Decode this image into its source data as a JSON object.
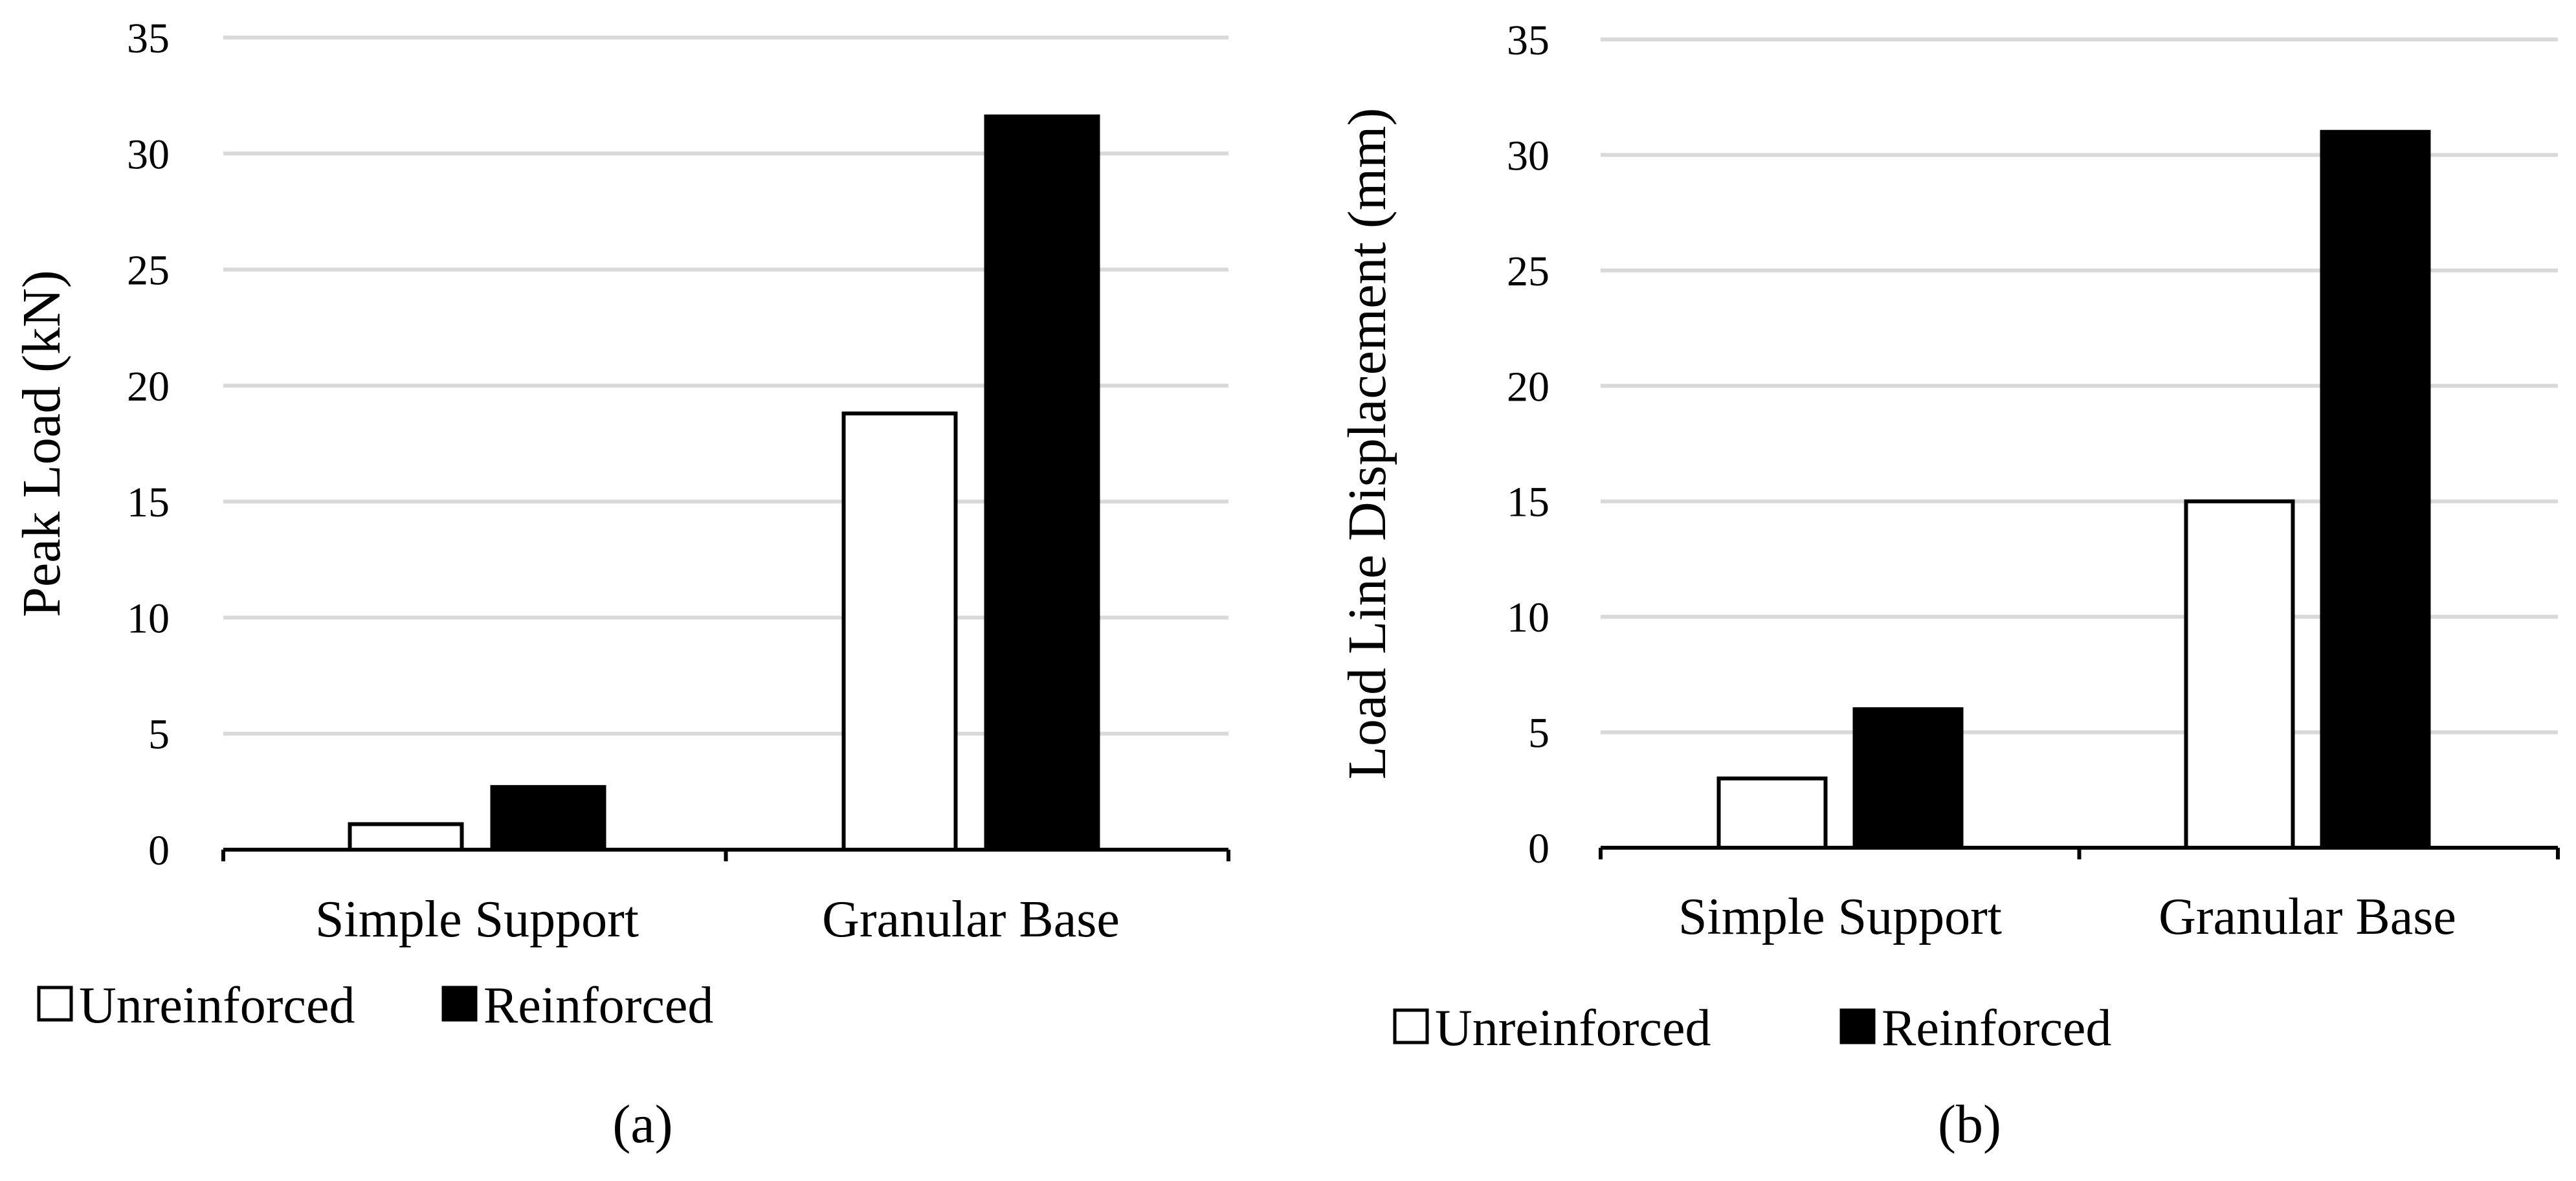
{
  "chart_data": [
    {
      "type": "bar",
      "panel_label": "(a)",
      "categories": [
        "Simple Support",
        "Granular Base"
      ],
      "series": [
        {
          "name": "Unreinforced",
          "values": [
            1.1,
            18.8
          ]
        },
        {
          "name": "Reinforced",
          "values": [
            2.7,
            31.6
          ]
        }
      ],
      "ylabel": "Peak Load (kN)",
      "xlabel": "",
      "ylim": [
        0,
        35
      ],
      "yticks": [
        "0",
        "5",
        "10",
        "15",
        "20",
        "25",
        "30",
        "35"
      ],
      "grid": true,
      "legend_position": "bottom-left"
    },
    {
      "type": "bar",
      "panel_label": "(b)",
      "categories": [
        "Simple Support",
        "Granular Base"
      ],
      "series": [
        {
          "name": "Unreinforced",
          "values": [
            3.0,
            15.0
          ]
        },
        {
          "name": "Reinforced",
          "values": [
            6.0,
            31.0
          ]
        }
      ],
      "ylabel": "Load Line Displacement (mm)",
      "xlabel": "",
      "ylim": [
        0,
        35
      ],
      "yticks": [
        "0",
        "5",
        "10",
        "15",
        "20",
        "25",
        "30",
        "35"
      ],
      "grid": true,
      "legend_position": "bottom-left"
    }
  ],
  "colors": {
    "unreinforced_fill": "#ffffff",
    "reinforced_fill": "#000000",
    "bar_outline": "#000000",
    "gridline": "#d9d9d9",
    "axis": "#000000"
  }
}
